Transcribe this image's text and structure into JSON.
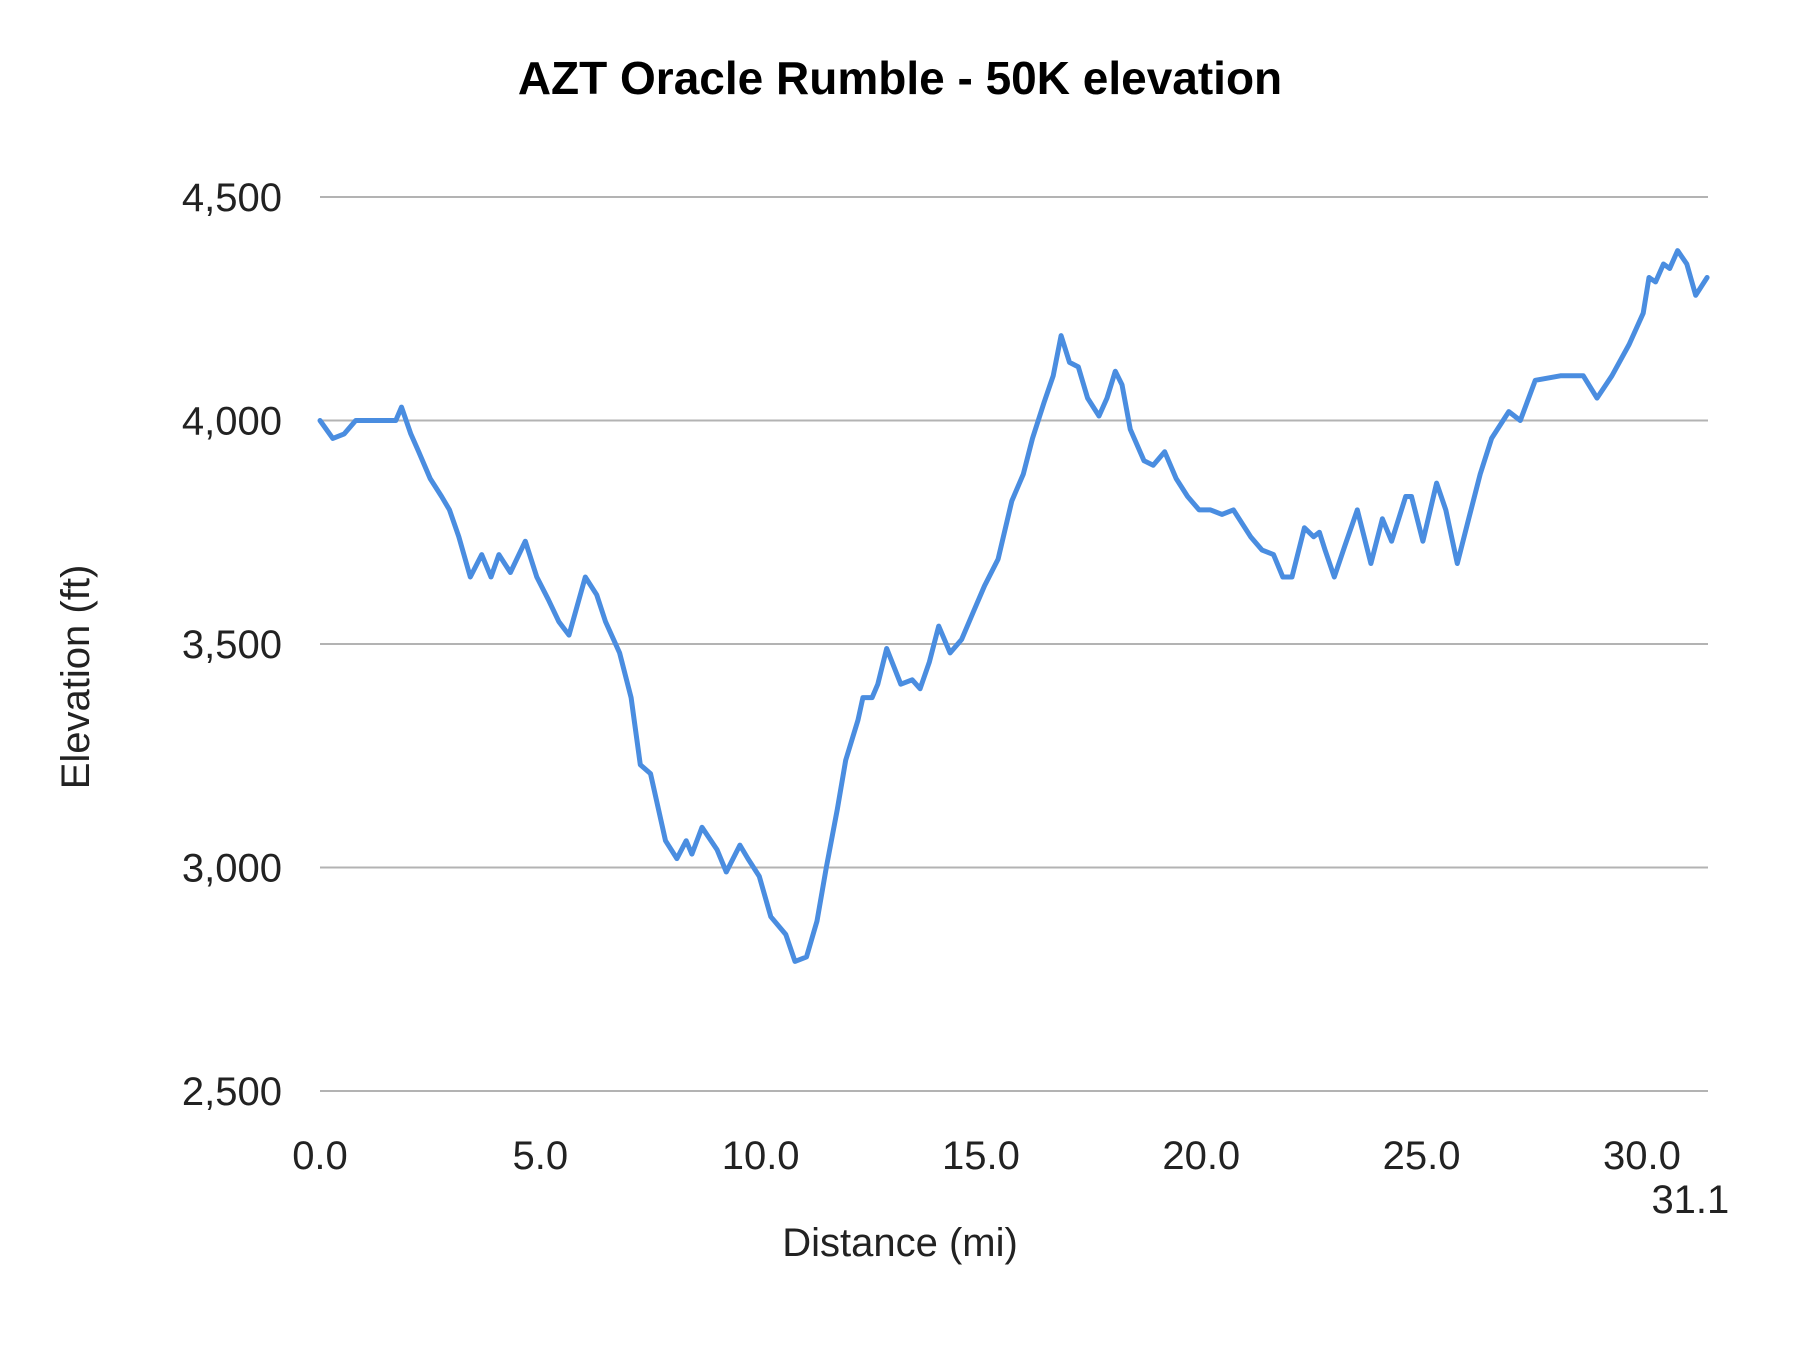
{
  "chart_data": {
    "type": "line",
    "title": "AZT Oracle Rumble - 50K elevation",
    "xlabel": "Distance (mi)",
    "ylabel": "Elevation (ft)",
    "xlim": [
      0,
      31.5
    ],
    "ylim": [
      2500,
      4500
    ],
    "x_ticks": [
      {
        "value": 0,
        "label": "0.0"
      },
      {
        "value": 5,
        "label": "5.0"
      },
      {
        "value": 10,
        "label": "10.0"
      },
      {
        "value": 15,
        "label": "15.0"
      },
      {
        "value": 20,
        "label": "20.0"
      },
      {
        "value": 25,
        "label": "25.0"
      },
      {
        "value": 30,
        "label": "30.0"
      },
      {
        "value": 31.1,
        "label": "31.1"
      }
    ],
    "y_ticks": [
      {
        "value": 4500,
        "label": "4,500"
      },
      {
        "value": 4000,
        "label": "4,000"
      },
      {
        "value": 3500,
        "label": "3,500"
      },
      {
        "value": 3000,
        "label": "3,000"
      },
      {
        "value": 2500,
        "label": "2,500"
      }
    ],
    "grid": "horizontal",
    "line_color": "#4a8de0",
    "grid_color": "#b3b3b3",
    "x": [
      0.0,
      0.29,
      0.55,
      0.81,
      1.72,
      1.85,
      2.06,
      2.24,
      2.5,
      2.76,
      2.94,
      3.15,
      3.41,
      3.67,
      3.88,
      4.06,
      4.32,
      4.66,
      4.92,
      5.18,
      5.42,
      5.65,
      6.02,
      6.28,
      6.48,
      6.8,
      7.06,
      7.27,
      7.5,
      7.84,
      8.1,
      8.31,
      8.44,
      8.67,
      9.01,
      9.22,
      9.53,
      9.71,
      9.97,
      10.23,
      10.57,
      10.78,
      11.04,
      11.28,
      11.49,
      11.74,
      11.93,
      12.21,
      12.32,
      12.53,
      12.66,
      12.86,
      13.18,
      13.44,
      13.62,
      13.83,
      14.04,
      14.3,
      14.56,
      14.82,
      15.08,
      15.39,
      15.7,
      15.96,
      16.17,
      16.43,
      16.64,
      16.82,
      17.01,
      17.21,
      17.42,
      17.68,
      17.86,
      18.05,
      18.2,
      18.39,
      18.7,
      18.91,
      19.17,
      19.43,
      19.69,
      19.95,
      20.21,
      20.47,
      20.73,
      21.12,
      21.38,
      21.64,
      21.85,
      22.06,
      22.34,
      22.55,
      22.68,
      22.81,
      23.02,
      23.26,
      23.54,
      23.85,
      24.11,
      24.32,
      24.64,
      24.77,
      25.03,
      25.34,
      25.55,
      25.81,
      26.07,
      26.33,
      26.59,
      26.98,
      27.24,
      27.58,
      28.15,
      28.67,
      28.98,
      29.32,
      29.71,
      30.03,
      30.16,
      30.31,
      30.49,
      30.63,
      30.81,
      31.02,
      31.22,
      31.48
    ],
    "y": [
      4000,
      3960,
      3970,
      4000,
      4000,
      4030,
      3970,
      3930,
      3870,
      3830,
      3800,
      3740,
      3650,
      3700,
      3650,
      3700,
      3660,
      3730,
      3650,
      3600,
      3550,
      3520,
      3650,
      3610,
      3550,
      3480,
      3380,
      3230,
      3210,
      3060,
      3020,
      3060,
      3030,
      3090,
      3040,
      2990,
      3050,
      3020,
      2980,
      2890,
      2850,
      2790,
      2800,
      2880,
      3000,
      3130,
      3240,
      3330,
      3380,
      3380,
      3410,
      3490,
      3410,
      3420,
      3400,
      3460,
      3540,
      3480,
      3510,
      3570,
      3630,
      3690,
      3820,
      3880,
      3960,
      4040,
      4100,
      4190,
      4130,
      4120,
      4050,
      4010,
      4050,
      4110,
      4080,
      3980,
      3910,
      3900,
      3930,
      3870,
      3830,
      3800,
      3800,
      3790,
      3800,
      3740,
      3710,
      3700,
      3650,
      3650,
      3760,
      3740,
      3750,
      3710,
      3650,
      3720,
      3800,
      3680,
      3780,
      3730,
      3830,
      3830,
      3730,
      3860,
      3800,
      3680,
      3780,
      3880,
      3960,
      4020,
      4000,
      4090,
      4100,
      4100,
      4050,
      4100,
      4170,
      4240,
      4320,
      4310,
      4350,
      4340,
      4380,
      4350,
      4280,
      4320
    ]
  }
}
